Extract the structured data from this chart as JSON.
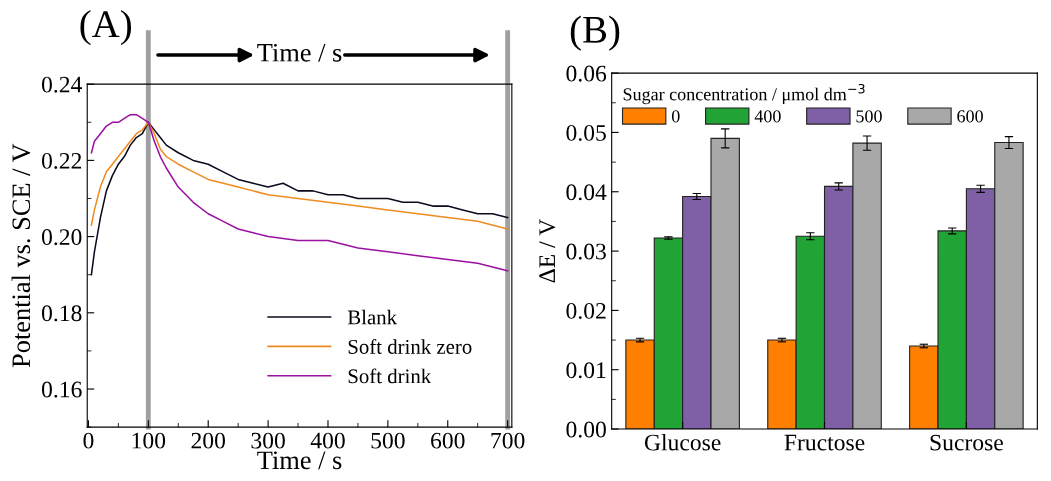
{
  "chart_data": [
    {
      "type": "line",
      "title": "(A)",
      "xlabel": "Time / s",
      "ylabel": "Potential vs. SCE / V",
      "xlim": [
        -2,
        707
      ],
      "xticks": [
        0,
        100,
        200,
        300,
        400,
        500,
        600,
        700
      ],
      "ylim": [
        0.15,
        0.24
      ],
      "yticks": [
        0.16,
        0.18,
        {
          "value": 0.2,
          "label": "0.20"
        },
        0.22,
        0.24
      ],
      "legend": "bottom right",
      "grid": false,
      "series": [
        {
          "name": "Blank",
          "color": "#0a0a1e",
          "x": [
            5,
            10,
            20,
            30,
            40,
            50,
            60,
            70,
            80,
            90,
            100,
            110,
            120,
            130,
            150,
            175,
            200,
            225,
            250,
            275,
            300,
            325,
            350,
            375,
            400,
            425,
            450,
            475,
            500,
            525,
            550,
            575,
            600,
            625,
            650,
            675,
            700
          ],
          "values": [
            0.19,
            0.196,
            0.205,
            0.212,
            0.216,
            0.219,
            0.221,
            0.224,
            0.226,
            0.227,
            0.23,
            0.228,
            0.226,
            0.224,
            0.222,
            0.22,
            0.219,
            0.217,
            0.215,
            0.214,
            0.213,
            0.214,
            0.212,
            0.212,
            0.211,
            0.211,
            0.21,
            0.21,
            0.21,
            0.209,
            0.209,
            0.208,
            0.208,
            0.207,
            0.206,
            0.206,
            0.205
          ]
        },
        {
          "name": "Soft drink zero",
          "color": "#f28a1e",
          "x": [
            5,
            10,
            20,
            30,
            40,
            50,
            60,
            70,
            80,
            90,
            100,
            110,
            120,
            130,
            150,
            175,
            200,
            225,
            250,
            275,
            300,
            350,
            400,
            450,
            500,
            550,
            600,
            650,
            700
          ],
          "values": [
            0.203,
            0.207,
            0.213,
            0.217,
            0.219,
            0.221,
            0.223,
            0.225,
            0.227,
            0.228,
            0.23,
            0.227,
            0.223,
            0.221,
            0.219,
            0.217,
            0.215,
            0.214,
            0.213,
            0.212,
            0.211,
            0.21,
            0.209,
            0.208,
            0.207,
            0.206,
            0.205,
            0.204,
            0.202
          ]
        },
        {
          "name": "Soft drink",
          "color": "#9b10a0",
          "x": [
            5,
            10,
            20,
            30,
            40,
            50,
            60,
            70,
            80,
            90,
            100,
            110,
            120,
            130,
            150,
            175,
            200,
            225,
            250,
            275,
            300,
            350,
            400,
            450,
            500,
            550,
            600,
            650,
            700
          ],
          "values": [
            0.222,
            0.225,
            0.227,
            0.229,
            0.23,
            0.23,
            0.231,
            0.232,
            0.232,
            0.231,
            0.23,
            0.225,
            0.221,
            0.218,
            0.213,
            0.209,
            0.206,
            0.204,
            0.202,
            0.201,
            0.2,
            0.199,
            0.199,
            0.197,
            0.196,
            0.195,
            0.194,
            0.193,
            0.191
          ]
        }
      ],
      "ref_lines": [
        {
          "axis": "x",
          "value": 100,
          "color": "#a0a0a0"
        },
        {
          "axis": "x",
          "value": 700,
          "color": "#a0a0a0"
        }
      ],
      "annotations": [
        "Time / s"
      ]
    },
    {
      "type": "bar",
      "title": "(B)",
      "ylabel": "ΔE / V",
      "categories": [
        "Glucose",
        "Fructose",
        "Sucrose"
      ],
      "ylim": [
        0,
        0.06
      ],
      "yticks": [
        {
          "value": 0,
          "label": "0.00"
        },
        {
          "value": 0.01,
          "label": "0.01"
        },
        {
          "value": 0.02,
          "label": "0.02"
        },
        {
          "value": 0.03,
          "label": "0.03"
        },
        {
          "value": 0.04,
          "label": "0.04"
        },
        {
          "value": 0.05,
          "label": "0.05"
        },
        {
          "value": 0.06,
          "label": "0.06"
        }
      ],
      "legend": "top left",
      "legend_title": "Sugar concentration / μmol dm$^{−3}$",
      "grid": false,
      "series": [
        {
          "name": "0",
          "color": "#ff8000",
          "values": [
            0.015,
            0.015,
            0.014
          ],
          "errors": [
            0.0003,
            0.0003,
            0.0003
          ]
        },
        {
          "name": "400",
          "color": "#21a336",
          "values": [
            0.0322,
            0.0325,
            0.0334
          ],
          "errors": [
            0.0002,
            0.0006,
            0.0005
          ]
        },
        {
          "name": "500",
          "color": "#7f5fa5",
          "values": [
            0.0392,
            0.0409,
            0.0405
          ],
          "errors": [
            0.0005,
            0.0006,
            0.0006
          ]
        },
        {
          "name": "600",
          "color": "#a8a8a8",
          "values": [
            0.049,
            0.0482,
            0.0483
          ],
          "errors": [
            0.0016,
            0.0012,
            0.001
          ]
        }
      ]
    }
  ]
}
